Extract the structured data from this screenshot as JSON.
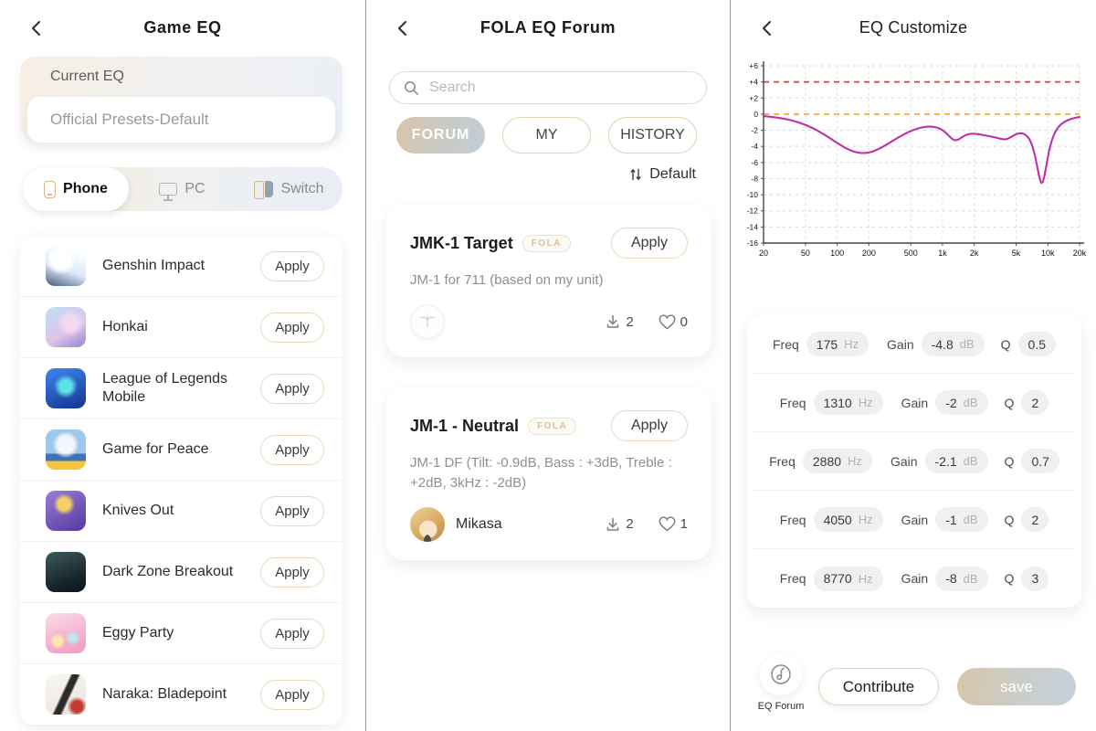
{
  "left_panel": {
    "title": "Game EQ",
    "current_eq": {
      "label": "Current EQ",
      "value": "Official Presets-Default"
    },
    "platform_tabs": [
      {
        "label": "Phone",
        "active": true
      },
      {
        "label": "PC",
        "active": false
      },
      {
        "label": "Switch",
        "active": false
      }
    ],
    "apply_label": "Apply",
    "games": [
      {
        "name": "Genshin Impact",
        "icon": "genshin-impact-icon"
      },
      {
        "name": "Honkai",
        "icon": "honkai-icon"
      },
      {
        "name": "League of Legends Mobile",
        "icon": "lol-mobile-icon"
      },
      {
        "name": "Game for Peace",
        "icon": "game-for-peace-icon"
      },
      {
        "name": "Knives Out",
        "icon": "knives-out-icon"
      },
      {
        "name": "Dark Zone Breakout",
        "icon": "dark-zone-breakout-icon"
      },
      {
        "name": "Eggy Party",
        "icon": "eggy-party-icon"
      },
      {
        "name": "Naraka: Bladepoint",
        "icon": "naraka-bladepoint-icon"
      }
    ]
  },
  "forum_panel": {
    "title": "FOLA EQ Forum",
    "search_placeholder": "Search",
    "tabs": [
      {
        "label": "FORUM",
        "active": true
      },
      {
        "label": "MY",
        "active": false
      },
      {
        "label": "HISTORY",
        "active": false
      }
    ],
    "sort_label": "Default",
    "cards": [
      {
        "title": "JMK-1 Target",
        "badge": "FOLA",
        "apply_label": "Apply",
        "desc": "JM-1 for 711 (based on my unit)",
        "author": "",
        "downloads": "2",
        "likes": "0"
      },
      {
        "title": "JM-1 - Neutral",
        "badge": "FOLA",
        "apply_label": "Apply",
        "desc": "JM-1 DF (Tilt: -0.9dB, Bass : +3dB, Treble : +2dB, 3kHz : -2dB)",
        "author": "Mikasa",
        "downloads": "2",
        "likes": "1"
      }
    ]
  },
  "eq_panel": {
    "title": "EQ Customize",
    "labels": {
      "freq": "Freq",
      "hz": "Hz",
      "gain": "Gain",
      "db": "dB",
      "q": "Q"
    },
    "filters": [
      {
        "freq": "175",
        "gain": "-4.8",
        "q": "0.5"
      },
      {
        "freq": "1310",
        "gain": "-2",
        "q": "2"
      },
      {
        "freq": "2880",
        "gain": "-2.1",
        "q": "0.7"
      },
      {
        "freq": "4050",
        "gain": "-1",
        "q": "2"
      },
      {
        "freq": "8770",
        "gain": "-8",
        "q": "3"
      }
    ],
    "buttons": {
      "forum": "EQ Forum",
      "contribute": "Contribute",
      "save": "save"
    }
  },
  "chart_data": {
    "type": "line",
    "title": "EQ frequency response (dB vs Hz, log x-axis)",
    "xlim": [
      20,
      20000
    ],
    "ylim": [
      -16,
      6
    ],
    "grid": "on",
    "x_ticks": [
      {
        "v": 20,
        "label": "20"
      },
      {
        "v": 50,
        "label": "50"
      },
      {
        "v": 100,
        "label": "100"
      },
      {
        "v": 200,
        "label": "200"
      },
      {
        "v": 500,
        "label": "500"
      },
      {
        "v": 1000,
        "label": "1k"
      },
      {
        "v": 2000,
        "label": "2k"
      },
      {
        "v": 5000,
        "label": "5k"
      },
      {
        "v": 10000,
        "label": "10k"
      },
      {
        "v": 20000,
        "label": "20k"
      }
    ],
    "y_ticks": [
      {
        "v": 6,
        "label": "+6"
      },
      {
        "v": 4,
        "label": "+4"
      },
      {
        "v": 2,
        "label": "+2"
      },
      {
        "v": 0,
        "label": "0"
      },
      {
        "v": -2,
        "label": "-2"
      },
      {
        "v": -4,
        "label": "-4"
      },
      {
        "v": -6,
        "label": "-6"
      },
      {
        "v": -8,
        "label": "-8"
      },
      {
        "v": -10,
        "label": "-10"
      },
      {
        "v": -12,
        "label": "-12"
      },
      {
        "v": -14,
        "label": "-14"
      },
      {
        "v": -16,
        "label": "-16"
      }
    ],
    "reference_lines": [
      {
        "v": 4,
        "color": "#ee3b2d",
        "style": "dashed"
      },
      {
        "v": 0,
        "color": "#f7aa3e",
        "style": "dashed"
      }
    ],
    "series": [
      {
        "name": "eq-response-curve",
        "color": "#c12fa5",
        "filters": [
          {
            "freq": 175,
            "gain": -4.8,
            "q": 0.5
          },
          {
            "freq": 1310,
            "gain": -2,
            "q": 2
          },
          {
            "freq": 2880,
            "gain": -2.1,
            "q": 0.7
          },
          {
            "freq": 4050,
            "gain": -1,
            "q": 2
          },
          {
            "freq": 8770,
            "gain": -8,
            "q": 3
          }
        ],
        "approx_points_dB": {
          "20": -0.4,
          "175": -4.4,
          "700": -1.5,
          "1310": -3.2,
          "2000": -2.4,
          "3500": -3.1,
          "5000": -2.3,
          "8770": -8.6,
          "20000": -0.5
        }
      }
    ],
    "legend": "none"
  }
}
